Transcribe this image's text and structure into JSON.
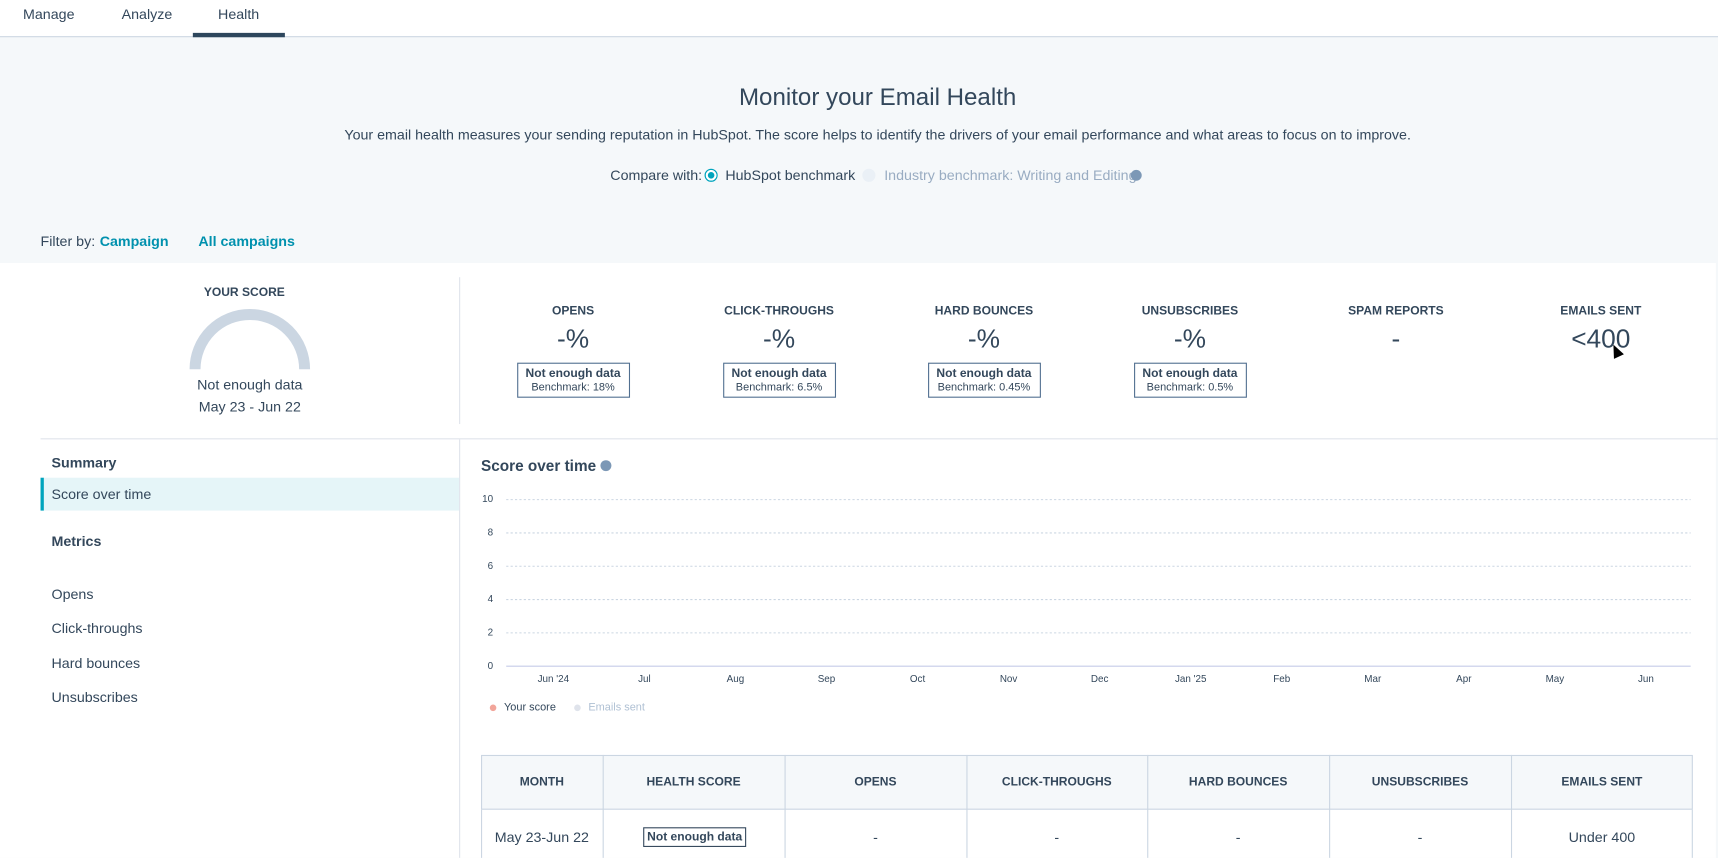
{
  "tabs": [
    "Manage",
    "Analyze",
    "Health"
  ],
  "header": {
    "title": "Monitor your Email Health",
    "description": "Your email health measures your sending reputation in HubSpot. The score helps to identify the drivers of your email performance and what areas to focus on to improve.",
    "compare_label": "Compare with:",
    "options": [
      "HubSpot benchmark",
      "Industry benchmark: Writing and Editing"
    ]
  },
  "filter": {
    "label": "Filter by:",
    "campaign": "Campaign",
    "all": "All campaigns"
  },
  "score": {
    "label": "YOUR SCORE",
    "status": "Not enough data",
    "range": "May 23 - Jun 22"
  },
  "metrics": [
    {
      "name": "OPENS",
      "value": "-%",
      "status": "Not enough data",
      "benchmark": "Benchmark: 18%"
    },
    {
      "name": "CLICK-THROUGHS",
      "value": "-%",
      "status": "Not enough data",
      "benchmark": "Benchmark: 6.5%"
    },
    {
      "name": "HARD BOUNCES",
      "value": "-%",
      "status": "Not enough data",
      "benchmark": "Benchmark: 0.45%"
    },
    {
      "name": "UNSUBSCRIBES",
      "value": "-%",
      "status": "Not enough data",
      "benchmark": "Benchmark: 0.5%"
    },
    {
      "name": "SPAM REPORTS",
      "value": "-"
    },
    {
      "name": "EMAILS SENT",
      "value": "<400"
    }
  ],
  "sidebar": {
    "summary": "Summary",
    "summary_items": [
      "Score over time"
    ],
    "metrics": "Metrics",
    "metric_items": [
      "Opens",
      "Click-throughs",
      "Hard bounces",
      "Unsubscribes"
    ]
  },
  "chart_data": {
    "type": "line",
    "title": "Score over time",
    "categories": [
      "Jun '24",
      "Jul",
      "Aug",
      "Sep",
      "Oct",
      "Nov",
      "Dec",
      "Jan '25",
      "Feb",
      "Mar",
      "Apr",
      "May",
      "Jun"
    ],
    "series": [
      {
        "name": "Your score",
        "color": "#f2a59a",
        "values": [
          null,
          null,
          null,
          null,
          null,
          null,
          null,
          null,
          null,
          null,
          null,
          null,
          null
        ]
      },
      {
        "name": "Emails sent",
        "color": "#dfe3eb",
        "values": [
          null,
          null,
          null,
          null,
          null,
          null,
          null,
          null,
          null,
          null,
          null,
          null,
          null
        ]
      }
    ],
    "ylim": [
      0,
      10
    ],
    "yticks": [
      0,
      2,
      4,
      6,
      8,
      10
    ],
    "grid": true
  },
  "table": {
    "headers": [
      "MONTH",
      "HEALTH SCORE",
      "OPENS",
      "CLICK-THROUGHS",
      "HARD BOUNCES",
      "UNSUBSCRIBES",
      "EMAILS SENT"
    ],
    "rows": [
      [
        "May 23-Jun 22",
        "Not enough data",
        "-",
        "-",
        "-",
        "-",
        "Under 400"
      ]
    ]
  }
}
